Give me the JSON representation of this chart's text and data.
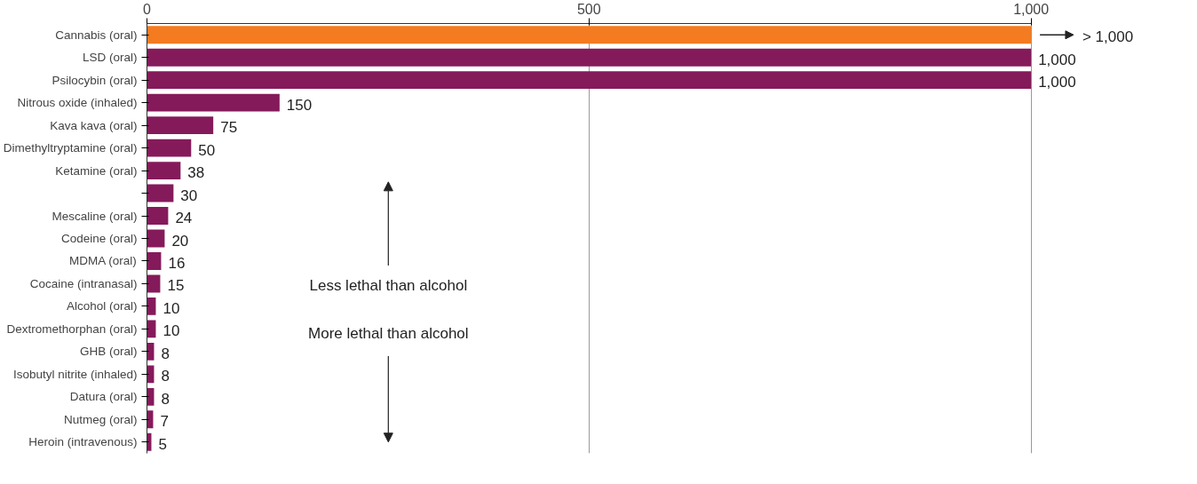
{
  "chart_data": {
    "type": "bar",
    "orientation": "horizontal",
    "categories": [
      "Cannabis (oral)",
      "LSD (oral)",
      "Psilocybin (oral)",
      "Nitrous oxide (inhaled)",
      "Kava kava (oral)",
      "Dimethyltryptamine (oral)",
      "Ketamine (oral)",
      null,
      "Mescaline (oral)",
      "Codeine (oral)",
      "MDMA (oral)",
      "Cocaine (intranasal)",
      "Alcohol (oral)",
      "Dextromethorphan (oral)",
      "GHB (oral)",
      "Isobutyl nitrite (inhaled)",
      "Datura (oral)",
      "Nutmeg (oral)",
      "Heroin (intravenous)"
    ],
    "values": [
      1000,
      1000,
      1000,
      150,
      75,
      50,
      38,
      30,
      24,
      20,
      16,
      15,
      10,
      10,
      8,
      8,
      8,
      7,
      5
    ],
    "colors": [
      "#f47b20",
      "#851a5b",
      "#851a5b",
      "#851a5b",
      "#851a5b",
      "#851a5b",
      "#851a5b",
      "#851a5b",
      "#851a5b",
      "#851a5b",
      "#851a5b",
      "#851a5b",
      "#851a5b",
      "#851a5b",
      "#851a5b",
      "#851a5b",
      "#851a5b",
      "#851a5b",
      "#851a5b"
    ],
    "value_labels": [
      null,
      "1,000",
      "1,000",
      "150",
      "75",
      "50",
      "38",
      "30",
      "24",
      "20",
      "16",
      "15",
      "10",
      "10",
      "8",
      "8",
      "8",
      "7",
      "5"
    ],
    "xlim": [
      0,
      1000
    ],
    "xticks": [
      0,
      500,
      {
        "value": 1000,
        "label": "1,000"
      }
    ],
    "grid": "x",
    "annotations": [
      "> 1,000",
      "Less lethal than alcohol",
      "More lethal than alcohol"
    ]
  }
}
